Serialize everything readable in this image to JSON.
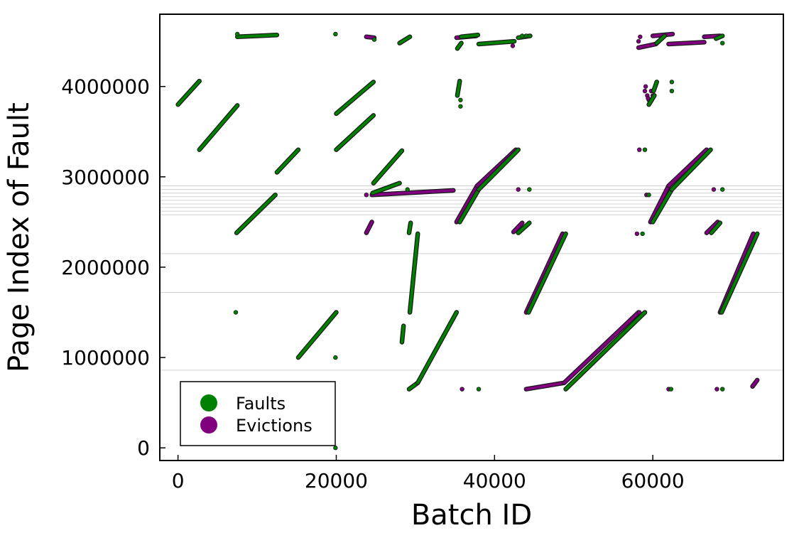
{
  "chart_data": {
    "type": "scatter",
    "xlabel": "Batch ID",
    "ylabel": "Page Index of Fault",
    "xlim": [
      -2300,
      76500
    ],
    "ylim": [
      -140000,
      4800000
    ],
    "xticks": [
      {
        "value": 0,
        "label": "0"
      },
      {
        "value": 20000,
        "label": "20000"
      },
      {
        "value": 40000,
        "label": "40000"
      },
      {
        "value": 60000,
        "label": "60000"
      }
    ],
    "yticks": [
      {
        "value": 0,
        "label": "0"
      },
      {
        "value": 1000000,
        "label": "1000000"
      },
      {
        "value": 2000000,
        "label": "2000000"
      },
      {
        "value": 3000000,
        "label": "3000000"
      },
      {
        "value": 4000000,
        "label": "4000000"
      }
    ],
    "hlines": [
      860000,
      1720000,
      2150000,
      2580000,
      2620000,
      2660000,
      2700000,
      2740000,
      2780000,
      2820000,
      2860000,
      2900000
    ],
    "legend": {
      "position": "bottom-left",
      "entries": [
        "Faults",
        "Evictions"
      ]
    },
    "series": [
      {
        "name": "Evictions",
        "color": "#800080",
        "segments": [
          {
            "x": [
              24500,
              34800
            ],
            "y": [
              2800000,
              2850000
            ]
          },
          {
            "x": [
              23800,
              24500
            ],
            "y": [
              2380000,
              2500000
            ]
          },
          {
            "x": [
              35200,
              37800
            ],
            "y": [
              2500000,
              2900000
            ]
          },
          {
            "x": [
              37800,
              42700
            ],
            "y": [
              2900000,
              3300000
            ]
          },
          {
            "x": [
              42400,
              43500
            ],
            "y": [
              2390000,
              2490000
            ]
          },
          {
            "x": [
              44000,
              48800
            ],
            "y": [
              650000,
              720000
            ]
          },
          {
            "x": [
              48800,
              58200
            ],
            "y": [
              720000,
              1500000
            ]
          },
          {
            "x": [
              44000,
              48600
            ],
            "y": [
              1500000,
              2370000
            ]
          },
          {
            "x": [
              59700,
              62000
            ],
            "y": [
              2500000,
              2900000
            ]
          },
          {
            "x": [
              62000,
              66800
            ],
            "y": [
              2900000,
              3300000
            ]
          },
          {
            "x": [
              66800,
              68200
            ],
            "y": [
              2380000,
              2500000
            ]
          },
          {
            "x": [
              68500,
              72700
            ],
            "y": [
              1500000,
              2370000
            ]
          },
          {
            "x": [
              72600,
              73200
            ],
            "y": [
              680000,
              750000
            ]
          },
          {
            "x": [
              35200,
              37700
            ],
            "y": [
              4540000,
              4560000
            ]
          },
          {
            "x": [
              58200,
              60400
            ],
            "y": [
              4430000,
              4470000
            ]
          },
          {
            "x": [
              60000,
              62500
            ],
            "y": [
              4560000,
              4580000
            ]
          },
          {
            "x": [
              62000,
              66500
            ],
            "y": [
              4470000,
              4490000
            ]
          },
          {
            "x": [
              66500,
              68500
            ],
            "y": [
              4550000,
              4560000
            ]
          },
          {
            "x": [
              23800,
              24800
            ],
            "y": [
              4550000,
              4540000
            ]
          }
        ],
        "points": [
          {
            "x": 23800,
            "y": 2800000
          },
          {
            "x": 35900,
            "y": 650000
          },
          {
            "x": 37500,
            "y": 4560000
          },
          {
            "x": 42300,
            "y": 4450000
          },
          {
            "x": 43000,
            "y": 2860000
          },
          {
            "x": 58000,
            "y": 2370000
          },
          {
            "x": 58300,
            "y": 3300000
          },
          {
            "x": 58200,
            "y": 4500000
          },
          {
            "x": 58400,
            "y": 4550000
          },
          {
            "x": 58300,
            "y": 1500000
          },
          {
            "x": 59200,
            "y": 2800000
          },
          {
            "x": 59000,
            "y": 3950000
          },
          {
            "x": 59300,
            "y": 3900000
          },
          {
            "x": 59500,
            "y": 3850000
          },
          {
            "x": 59800,
            "y": 3950000
          },
          {
            "x": 60000,
            "y": 3900000
          },
          {
            "x": 59100,
            "y": 4000000
          },
          {
            "x": 59400,
            "y": 3870000
          },
          {
            "x": 62000,
            "y": 650000
          },
          {
            "x": 67700,
            "y": 2860000
          },
          {
            "x": 68100,
            "y": 650000
          }
        ]
      },
      {
        "name": "Faults",
        "color": "#008000",
        "segments": [
          {
            "x": [
              0,
              2700
            ],
            "y": [
              3800000,
              4060000
            ]
          },
          {
            "x": [
              2700,
              7500
            ],
            "y": [
              3300000,
              3790000
            ]
          },
          {
            "x": [
              7400,
              12300
            ],
            "y": [
              2380000,
              2800000
            ]
          },
          {
            "x": [
              7500,
              12500
            ],
            "y": [
              4550000,
              4570000
            ]
          },
          {
            "x": [
              12500,
              15200
            ],
            "y": [
              3050000,
              3300000
            ]
          },
          {
            "x": [
              15200,
              20000
            ],
            "y": [
              1000000,
              1500000
            ]
          },
          {
            "x": [
              20000,
              24700
            ],
            "y": [
              3700000,
              4050000
            ]
          },
          {
            "x": [
              20000,
              24700
            ],
            "y": [
              3300000,
              3680000
            ]
          },
          {
            "x": [
              24700,
              28300
            ],
            "y": [
              2930000,
              3290000
            ]
          },
          {
            "x": [
              24600,
              28000
            ],
            "y": [
              2820000,
              2930000
            ]
          },
          {
            "x": [
              29200,
              30300
            ],
            "y": [
              650000,
              720000
            ]
          },
          {
            "x": [
              30300,
              35200
            ],
            "y": [
              720000,
              1500000
            ]
          },
          {
            "x": [
              29300,
              30300
            ],
            "y": [
              1500000,
              2370000
            ]
          },
          {
            "x": [
              28300,
              28500
            ],
            "y": [
              1170000,
              1350000
            ]
          },
          {
            "x": [
              29200,
              29400
            ],
            "y": [
              2380000,
              2490000
            ]
          },
          {
            "x": [
              35300,
              35600
            ],
            "y": [
              3900000,
              4060000
            ]
          },
          {
            "x": [
              35600,
              38000
            ],
            "y": [
              2500000,
              2860000
            ]
          },
          {
            "x": [
              38000,
              43000
            ],
            "y": [
              2860000,
              3300000
            ]
          },
          {
            "x": [
              44300,
              49000
            ],
            "y": [
              1500000,
              2370000
            ]
          },
          {
            "x": [
              49000,
              59000
            ],
            "y": [
              650000,
              1500000
            ]
          },
          {
            "x": [
              43000,
              44400
            ],
            "y": [
              2380000,
              2490000
            ]
          },
          {
            "x": [
              35300,
              35800
            ],
            "y": [
              4420000,
              4480000
            ]
          },
          {
            "x": [
              35800,
              37900
            ],
            "y": [
              4550000,
              4570000
            ]
          },
          {
            "x": [
              38000,
              42500
            ],
            "y": [
              4470000,
              4500000
            ]
          },
          {
            "x": [
              43000,
              44500
            ],
            "y": [
              4540000,
              4560000
            ]
          },
          {
            "x": [
              60000,
              62400
            ],
            "y": [
              2500000,
              2860000
            ]
          },
          {
            "x": [
              62400,
              67300
            ],
            "y": [
              2860000,
              3300000
            ]
          },
          {
            "x": [
              67400,
              68500
            ],
            "y": [
              2380000,
              2490000
            ]
          },
          {
            "x": [
              68700,
              73200
            ],
            "y": [
              1500000,
              2370000
            ]
          },
          {
            "x": [
              60100,
              60500
            ],
            "y": [
              3950000,
              4050000
            ]
          },
          {
            "x": [
              59500,
              60200
            ],
            "y": [
              3800000,
              3900000
            ]
          },
          {
            "x": [
              60500,
              61500
            ],
            "y": [
              4480000,
              4560000
            ]
          },
          {
            "x": [
              68000,
              68800
            ],
            "y": [
              4530000,
              4560000
            ]
          },
          {
            "x": [
              28000,
              29300
            ],
            "y": [
              4480000,
              4550000
            ]
          }
        ],
        "points": [
          {
            "x": 7300,
            "y": 1500000
          },
          {
            "x": 7500,
            "y": 4580000
          },
          {
            "x": 19900,
            "y": 4580000
          },
          {
            "x": 19900,
            "y": 1000000
          },
          {
            "x": 19900,
            "y": 0
          },
          {
            "x": 24800,
            "y": 4520000
          },
          {
            "x": 29000,
            "y": 2860000
          },
          {
            "x": 35700,
            "y": 3780000
          },
          {
            "x": 35700,
            "y": 3850000
          },
          {
            "x": 38000,
            "y": 650000
          },
          {
            "x": 44400,
            "y": 2860000
          },
          {
            "x": 58700,
            "y": 2370000
          },
          {
            "x": 59000,
            "y": 3300000
          },
          {
            "x": 59500,
            "y": 2800000
          },
          {
            "x": 62300,
            "y": 650000
          },
          {
            "x": 62400,
            "y": 3950000
          },
          {
            "x": 62400,
            "y": 4050000
          },
          {
            "x": 68800,
            "y": 650000
          },
          {
            "x": 68800,
            "y": 2860000
          },
          {
            "x": 68800,
            "y": 4480000
          },
          {
            "x": 43500,
            "y": 4560000
          },
          {
            "x": 44000,
            "y": 4560000
          }
        ]
      }
    ]
  }
}
